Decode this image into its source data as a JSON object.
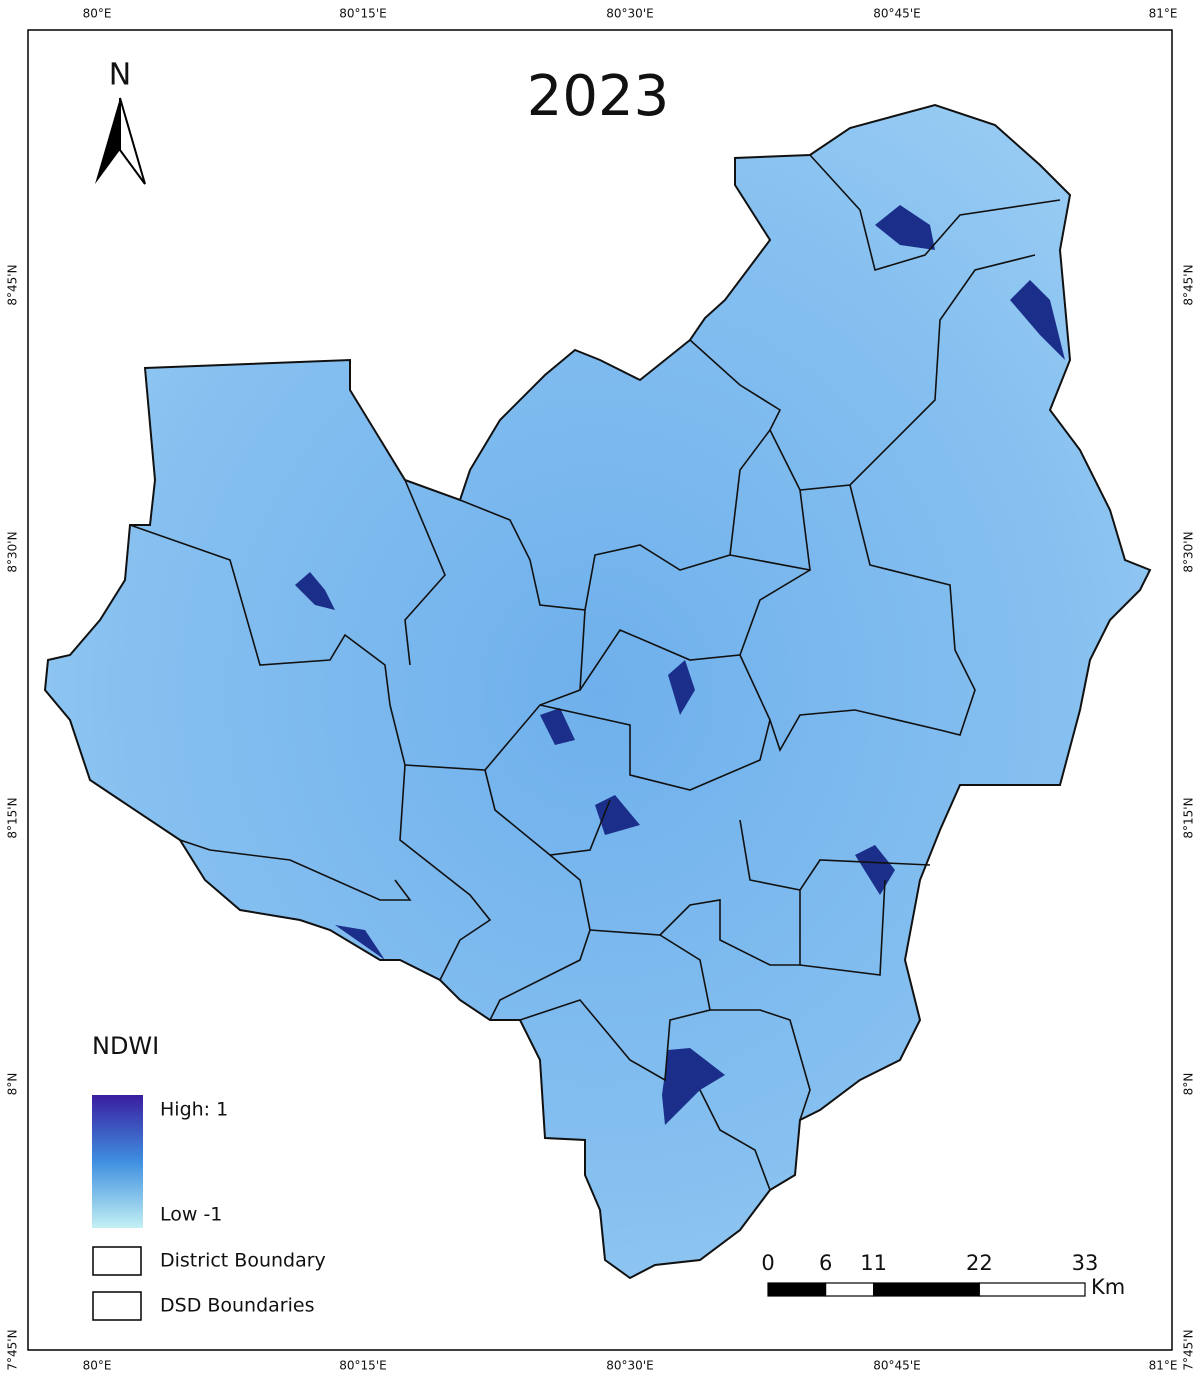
{
  "title": "2023",
  "north_arrow": "N",
  "graticule": {
    "longitudes": [
      "80°E",
      "80°15'E",
      "80°30'E",
      "80°45'E",
      "81°E"
    ],
    "latitudes": [
      "8°45'N",
      "8°30'N",
      "8°15'N",
      "8°N",
      "7°45'N"
    ]
  },
  "legend": {
    "title": "NDWI",
    "high": "High: 1",
    "low": "Low -1",
    "items": [
      "District Boundary",
      "DSD Boundaries"
    ]
  },
  "scale_bar": {
    "ticks": [
      0,
      6,
      11,
      22,
      33
    ],
    "unit": "Km"
  }
}
